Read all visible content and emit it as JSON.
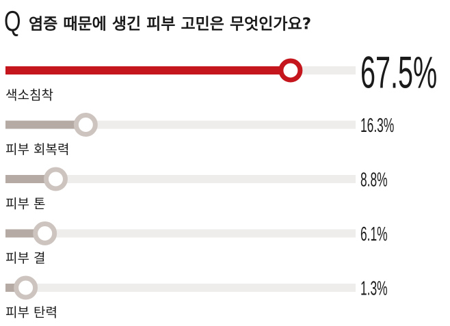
{
  "chart_data": {
    "type": "slider-bar",
    "title_marker": "Q",
    "title": "염증 때문에 생긴 피부 고민은 무엇인가요?",
    "categories": [
      "색소침착",
      "피부 회복력",
      "피부 톤",
      "피부 결",
      "피부 탄력"
    ],
    "values": [
      67.5,
      16.3,
      8.8,
      6.1,
      1.3
    ],
    "value_labels": [
      "67.5%",
      "16.3%",
      "8.8%",
      "6.1%",
      "1.3%"
    ],
    "colors": [
      "#c4161c",
      "#b5aaa4",
      "#b5aaa4",
      "#b5aaa4",
      "#b5aaa4"
    ],
    "track_color": "#efedeb"
  }
}
